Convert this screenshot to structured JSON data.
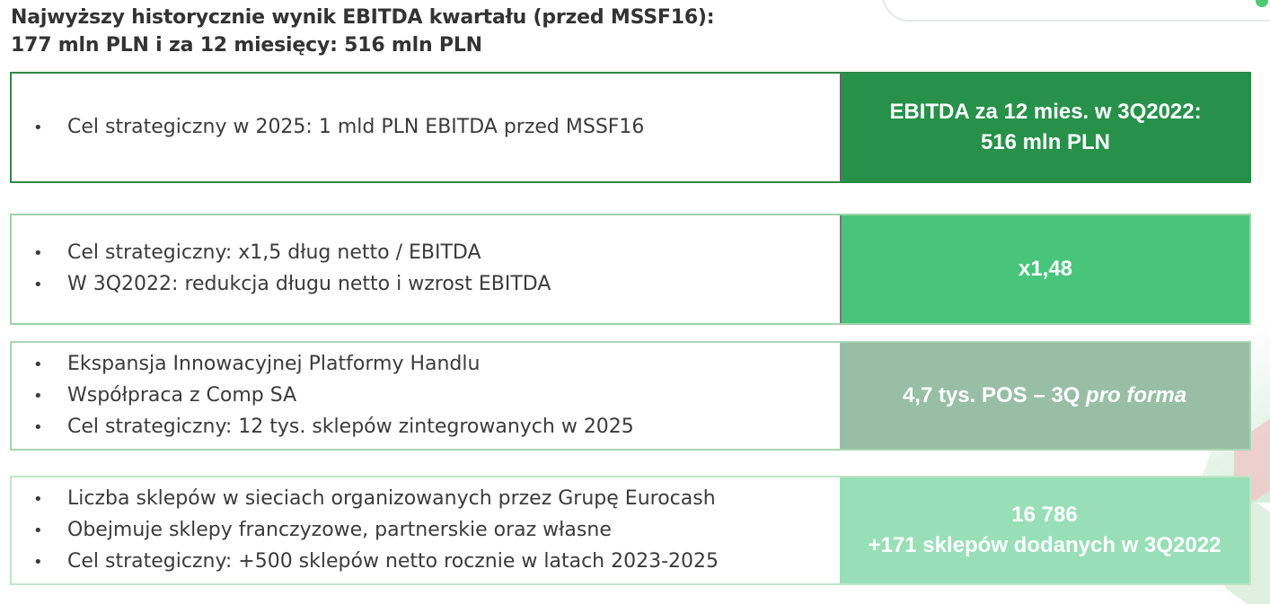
{
  "headline": {
    "line1": "Najwyższy historycznie wynik EBITDA kwartału (przed MSSF16):",
    "line2": "177 mln PLN i za 12 miesięcy: 516 mln PLN"
  },
  "rows": [
    {
      "bullets": [
        "Cel strategiczny w 2025: 1 mld PLN EBITDA przed MSSF16"
      ],
      "highlight": {
        "line1": "EBITDA za 12 mies. w 3Q2022:",
        "line2": "516 mln PLN"
      },
      "color": "#27914a"
    },
    {
      "bullets": [
        "Cel strategiczny: x1,5 dług netto / EBITDA",
        "W 3Q2022: redukcja długu netto i wzrost EBITDA"
      ],
      "highlight": {
        "line1": "x1,48"
      },
      "color": "#48c57b"
    },
    {
      "bullets": [
        "Ekspansja Innowacyjnej Platformy Handlu",
        "Współpraca z Comp SA",
        "Cel strategiczny: 12 tys. sklepów zintegrowanych w 2025"
      ],
      "highlight": {
        "line1_regular": "4,7 tys. POS – 3Q ",
        "line1_italic": "pro forma"
      },
      "color": "#98bfa6"
    },
    {
      "bullets": [
        "Liczba sklepów w sieciach organizowanych przez Grupę Eurocash",
        "Obejmuje sklepy franczyzowe, partnerskie oraz własne",
        "Cel strategiczny: +500 sklepów netto rocznie w latach 2023-2025"
      ],
      "highlight": {
        "line1": "16 786",
        "line2": "+171 sklepów dodanych w 3Q2022"
      },
      "color": "#98dfb7"
    }
  ]
}
